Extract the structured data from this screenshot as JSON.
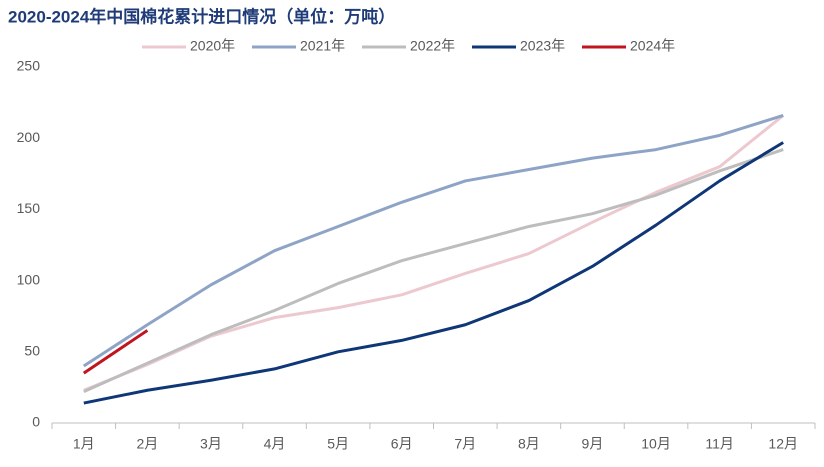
{
  "chart_data": {
    "type": "line",
    "title": "2020-2024年中国棉花累计进口情况（单位：万吨）",
    "categories": [
      "1月",
      "2月",
      "3月",
      "4月",
      "5月",
      "6月",
      "7月",
      "8月",
      "9月",
      "10月",
      "11月",
      "12月"
    ],
    "series": [
      {
        "name": "2020年",
        "color": "#ecc9cf",
        "values": [
          23,
          41,
          61,
          74,
          81,
          90,
          105,
          119,
          141,
          162,
          180,
          216
        ]
      },
      {
        "name": "2021年",
        "color": "#8ea4c6",
        "values": [
          40,
          69,
          97,
          121,
          138,
          155,
          170,
          178,
          186,
          192,
          202,
          216
        ]
      },
      {
        "name": "2022年",
        "color": "#bdbdbd",
        "values": [
          22,
          42,
          62,
          79,
          98,
          114,
          126,
          138,
          147,
          160,
          177,
          192
        ]
      },
      {
        "name": "2023年",
        "color": "#0f3778",
        "values": [
          14,
          23,
          30,
          38,
          50,
          58,
          69,
          86,
          110,
          139,
          170,
          197
        ]
      },
      {
        "name": "2024年",
        "color": "#c0141e",
        "values": [
          35,
          65,
          null,
          null,
          null,
          null,
          null,
          null,
          null,
          null,
          null,
          null
        ]
      }
    ],
    "ylim": [
      0,
      250
    ],
    "yticks": [
      0,
      50,
      100,
      150,
      200,
      250
    ],
    "grid": false,
    "legend": "top"
  }
}
